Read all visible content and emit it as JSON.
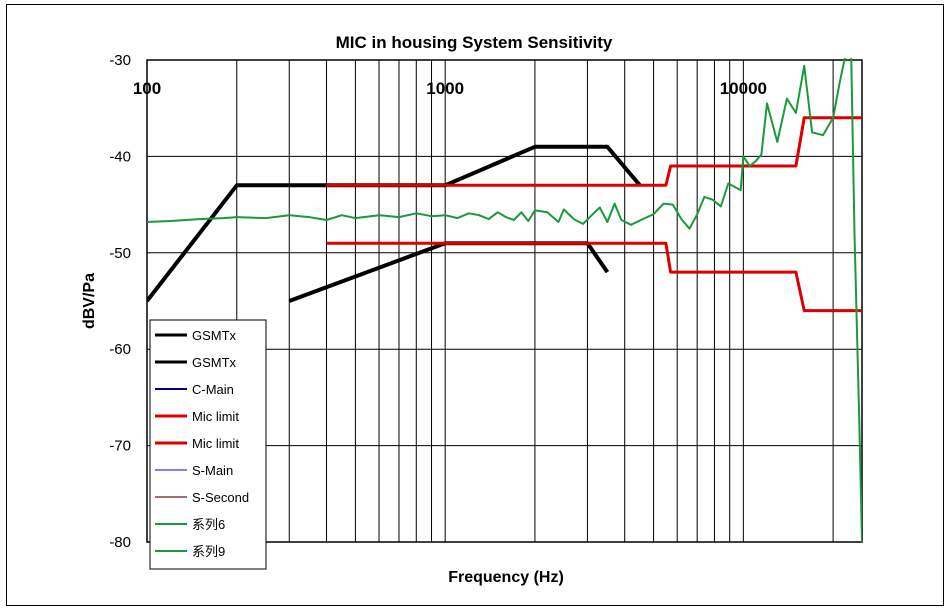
{
  "chart_data": {
    "type": "line",
    "title": "MIC in housing System Sensitivity",
    "xlabel": "Frequency (Hz)",
    "ylabel": "dBV/Pa",
    "xscale": "log",
    "xlim": [
      100,
      25000
    ],
    "ylim": [
      -80,
      -30
    ],
    "x_tick_labels": [
      "100",
      "1000",
      "10000"
    ],
    "y_ticks": [
      -30,
      -40,
      -50,
      -60,
      -70,
      -80
    ],
    "grid": true,
    "legend_position": "bottom-left",
    "series": [
      {
        "name": "GSMTx",
        "color": "#000000",
        "width": 4,
        "points": [
          [
            100,
            -55
          ],
          [
            200,
            -43
          ],
          [
            1000,
            -43
          ],
          [
            2000,
            -39
          ],
          [
            3500,
            -39
          ],
          [
            4500,
            -43
          ]
        ]
      },
      {
        "name": "GSMTx",
        "color": "#000000",
        "width": 4,
        "points": [
          [
            300,
            -55
          ],
          [
            1000,
            -49
          ],
          [
            3000,
            -49
          ],
          [
            3500,
            -52
          ]
        ]
      },
      {
        "name": "C-Main",
        "color": "#000080",
        "width": 2,
        "points": []
      },
      {
        "name": "Mic limit",
        "color": "#dd0000",
        "width": 3,
        "points": [
          [
            400,
            -43
          ],
          [
            5500,
            -43
          ],
          [
            5700,
            -41
          ],
          [
            15000,
            -41
          ],
          [
            16000,
            -36
          ],
          [
            25000,
            -36
          ]
        ]
      },
      {
        "name": "Mic limit",
        "color": "#dd0000",
        "width": 3,
        "points": [
          [
            400,
            -49
          ],
          [
            5500,
            -49
          ],
          [
            5700,
            -52
          ],
          [
            15000,
            -52
          ],
          [
            16000,
            -56
          ],
          [
            25000,
            -56
          ]
        ]
      },
      {
        "name": "S-Main",
        "color": "#7f7fff",
        "width": 2,
        "points": []
      },
      {
        "name": "S-Second",
        "color": "#a07070",
        "width": 2,
        "points": []
      },
      {
        "name": "系列6",
        "color": "#1a9a3a",
        "width": 2,
        "points": [
          [
            100,
            -46.8
          ],
          [
            120,
            -46.7
          ],
          [
            150,
            -46.5
          ],
          [
            180,
            -46.4
          ],
          [
            200,
            -46.3
          ],
          [
            250,
            -46.4
          ],
          [
            300,
            -46.1
          ],
          [
            350,
            -46.3
          ],
          [
            400,
            -46.6
          ],
          [
            450,
            -46.1
          ],
          [
            500,
            -46.4
          ],
          [
            600,
            -46.1
          ],
          [
            700,
            -46.3
          ],
          [
            800,
            -45.9
          ],
          [
            900,
            -46.2
          ],
          [
            1000,
            -46.1
          ],
          [
            1100,
            -46.4
          ],
          [
            1200,
            -45.9
          ],
          [
            1300,
            -46.1
          ],
          [
            1400,
            -46.5
          ],
          [
            1500,
            -45.8
          ],
          [
            1600,
            -46.3
          ],
          [
            1700,
            -46.6
          ],
          [
            1800,
            -45.8
          ],
          [
            1900,
            -46.7
          ],
          [
            2000,
            -45.6
          ],
          [
            2200,
            -45.8
          ],
          [
            2400,
            -46.8
          ],
          [
            2500,
            -45.5
          ],
          [
            2700,
            -46.5
          ],
          [
            2900,
            -47.0
          ],
          [
            3100,
            -46.1
          ],
          [
            3300,
            -45.3
          ],
          [
            3500,
            -46.8
          ],
          [
            3700,
            -44.9
          ],
          [
            3900,
            -46.6
          ],
          [
            4200,
            -47.1
          ],
          [
            4600,
            -46.5
          ],
          [
            5000,
            -46.0
          ],
          [
            5400,
            -44.9
          ],
          [
            5800,
            -45.0
          ],
          [
            6200,
            -46.5
          ],
          [
            6600,
            -47.5
          ],
          [
            7000,
            -46.0
          ],
          [
            7400,
            -44.2
          ],
          [
            7900,
            -44.5
          ],
          [
            8400,
            -45.2
          ],
          [
            8900,
            -42.8
          ],
          [
            9400,
            -43.2
          ],
          [
            9800,
            -43.5
          ],
          [
            10000,
            -40.0
          ],
          [
            10500,
            -41.0
          ],
          [
            11000,
            -40.5
          ],
          [
            11500,
            -39.8
          ],
          [
            12000,
            -34.5
          ],
          [
            13000,
            -38.5
          ],
          [
            14000,
            -34.0
          ],
          [
            15000,
            -35.5
          ],
          [
            16000,
            -30.6
          ],
          [
            17000,
            -37.5
          ],
          [
            18500,
            -37.8
          ],
          [
            20000,
            -36.0
          ],
          [
            21000,
            -32.5
          ],
          [
            22000,
            -29.5
          ],
          [
            23000,
            -29.5
          ],
          [
            23600,
            -48.0
          ],
          [
            24500,
            -68.0
          ],
          [
            25000,
            -80.0
          ]
        ]
      },
      {
        "name": "系列9",
        "color": "#1a9a3a",
        "width": 2,
        "points": []
      }
    ]
  }
}
